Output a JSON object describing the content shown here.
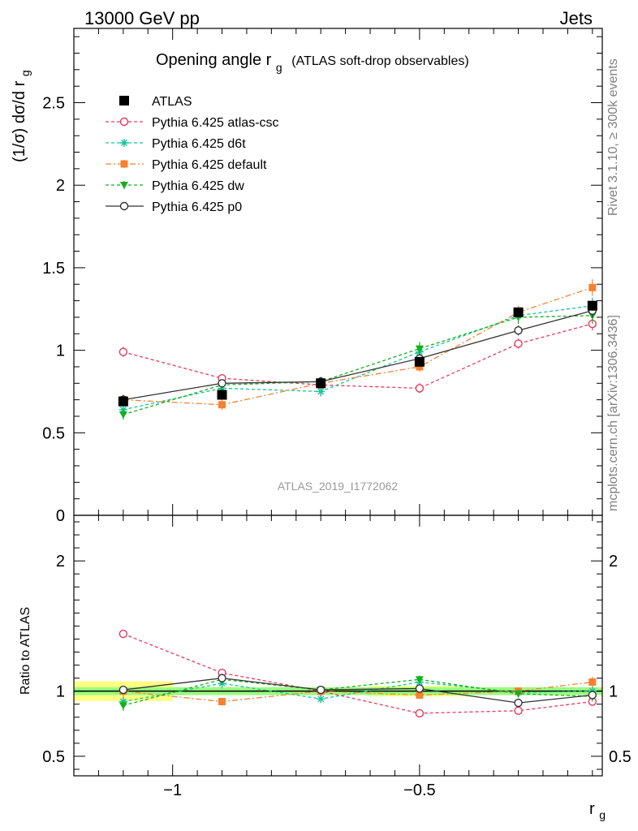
{
  "header": {
    "left": "13000 GeV pp",
    "right": "Jets"
  },
  "side_labels": {
    "rivet": "Rivet 3.1.10, ≥ 300k events",
    "mcplots": "mcplots.cern.ch [arXiv:1306.3436]"
  },
  "chart_data": {
    "type": "line",
    "title": "Opening angle r",
    "title_sub": "g",
    "title_note": "(ATLAS soft-drop observables)",
    "analysis_label": "ATLAS_2019_I1772062",
    "ylabel": "(1/σ) dσ/d r",
    "ylabel_sub": "g",
    "xlabel": "r",
    "xlabel_sub": "g",
    "ratio_ylabel": "Ratio to ATLAS",
    "xlim": [
      -1.2,
      -0.13
    ],
    "ylim": [
      0,
      2.95
    ],
    "ratio_ylim": [
      0.35,
      2.35
    ],
    "x_ticks": [
      {
        "v": -1,
        "label": "−1"
      },
      {
        "v": -0.5,
        "label": "−0.5"
      }
    ],
    "y_ticks": [
      {
        "v": 0.5,
        "label": "0.5"
      },
      {
        "v": 1,
        "label": "1"
      },
      {
        "v": 1.5,
        "label": "1.5"
      },
      {
        "v": 2,
        "label": "2"
      },
      {
        "v": 2.5,
        "label": "2.5"
      }
    ],
    "ratio_ticks": [
      {
        "v": 0.5,
        "label": "0.5"
      },
      {
        "v": 1,
        "label": "1"
      },
      {
        "v": 2,
        "label": "2"
      }
    ],
    "x": [
      -1.1,
      -0.9,
      -0.7,
      -0.5,
      -0.3,
      -0.15
    ],
    "bin_edges": [
      -1.2,
      -1.0,
      -0.8,
      -0.6,
      -0.4,
      -0.2,
      -0.13
    ],
    "data": {
      "name": "ATLAS",
      "values": [
        0.69,
        0.73,
        0.8,
        0.93,
        1.23,
        1.27
      ],
      "errors": [
        0.02,
        0.02,
        0.02,
        0.02,
        0.02,
        0.03
      ],
      "band_inner": [
        0.03,
        0.03,
        0.03,
        0.03,
        0.03,
        0.03
      ],
      "band_outer": [
        0.075,
        0.03,
        0.03,
        0.04,
        0.03,
        0.03
      ]
    },
    "series": [
      {
        "name": "Pythia 6.425 atlas-csc",
        "color": "#e8395e",
        "dash": "4,3",
        "marker": "open-circle",
        "values": [
          0.99,
          0.83,
          0.79,
          0.77,
          1.04,
          1.16
        ],
        "errors": [
          0.03,
          0.02,
          0.02,
          0.03,
          0.03,
          0.04
        ],
        "ratio": [
          1.44,
          1.14,
          1.0,
          0.83,
          0.85,
          0.92
        ],
        "ratio_err": [
          0.03,
          0.03,
          0.02,
          0.02,
          0.02,
          0.03
        ]
      },
      {
        "name": "Pythia 6.425 d6t",
        "color": "#17c49a",
        "dash": "4,3",
        "marker": "star",
        "values": [
          0.64,
          0.77,
          0.75,
          0.99,
          1.21,
          1.27
        ],
        "errors": [
          0.03,
          0.03,
          0.03,
          0.04,
          0.04,
          0.05
        ],
        "ratio": [
          0.92,
          1.06,
          0.94,
          1.07,
          0.99,
          1.0
        ],
        "ratio_err": [
          0.04,
          0.04,
          0.03,
          0.03,
          0.03,
          0.04
        ]
      },
      {
        "name": "Pythia 6.425 default",
        "color": "#f58231",
        "dash": "7,3,2,3",
        "marker": "filled-square",
        "values": [
          0.7,
          0.67,
          0.8,
          0.9,
          1.23,
          1.38
        ],
        "errors": [
          0.03,
          0.03,
          0.03,
          0.03,
          0.04,
          0.05
        ],
        "ratio": [
          1.0,
          0.92,
          1.0,
          0.97,
          1.0,
          1.07
        ],
        "ratio_err": [
          0.04,
          0.03,
          0.03,
          0.03,
          0.03,
          0.04
        ]
      },
      {
        "name": "Pythia 6.425 dw",
        "color": "#13b01c",
        "dash": "4,3",
        "marker": "filled-triangle-down",
        "values": [
          0.61,
          0.79,
          0.81,
          1.01,
          1.2,
          1.21
        ],
        "errors": [
          0.03,
          0.03,
          0.03,
          0.04,
          0.04,
          0.05
        ],
        "ratio": [
          0.89,
          1.09,
          1.01,
          1.09,
          0.98,
          0.96
        ],
        "ratio_err": [
          0.04,
          0.04,
          0.03,
          0.03,
          0.03,
          0.04
        ]
      },
      {
        "name": "Pythia 6.425 p0",
        "color": "#333333",
        "dash": "",
        "marker": "open-circle",
        "values": [
          0.7,
          0.8,
          0.81,
          0.95,
          1.12,
          1.24
        ],
        "errors": [
          0.03,
          0.02,
          0.02,
          0.03,
          0.03,
          0.04
        ],
        "ratio": [
          1.01,
          1.1,
          1.01,
          1.02,
          0.91,
          0.97
        ],
        "ratio_err": [
          0.03,
          0.03,
          0.02,
          0.02,
          0.02,
          0.03
        ]
      }
    ]
  }
}
